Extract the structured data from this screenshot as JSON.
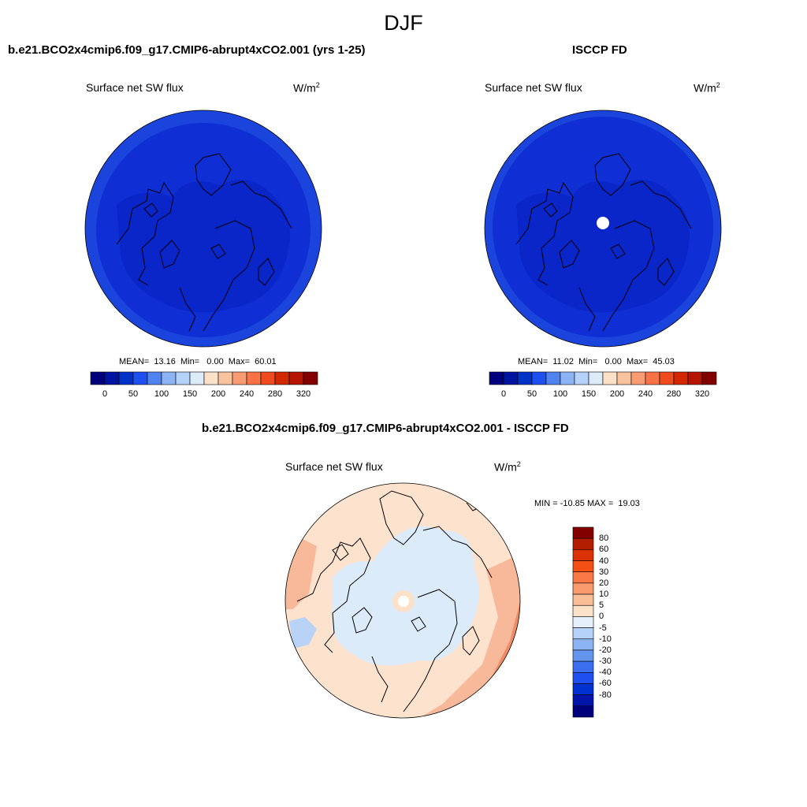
{
  "season": "DJF",
  "panels": [
    {
      "title": "b.e21.BCO2x4cmip6.f09_g17.CMIP6-abrupt4xCO2.001 (yrs 1-25)",
      "variable": "Surface net SW flux",
      "units_base": "W/m",
      "units_exp": "2",
      "stats": "MEAN=  13.16  Min=   0.00  Max=  60.01"
    },
    {
      "title": "ISCCP FD",
      "variable": "Surface net SW flux",
      "units_base": "W/m",
      "units_exp": "2",
      "stats": "MEAN=  11.02  Min=   0.00  Max=  45.03"
    },
    {
      "title": "b.e21.BCO2x4cmip6.f09_g17.CMIP6-abrupt4xCO2.001 - ISCCP FD",
      "variable": "Surface net SW flux",
      "units_base": "W/m",
      "units_exp": "2",
      "stats": "MIN = -10.85 MAX =  19.03"
    }
  ],
  "colorbar_abs": {
    "colors": [
      "#00007d",
      "#0014a0",
      "#0032c8",
      "#1e50f0",
      "#5082f0",
      "#8cb4f5",
      "#b4d2fa",
      "#dcebfa",
      "#fae1c8",
      "#fac3a0",
      "#fa9b73",
      "#fa7346",
      "#f04b1e",
      "#d22800",
      "#b41400",
      "#820000"
    ],
    "labels": [
      "0",
      "50",
      "100",
      "150",
      "200",
      "240",
      "280",
      "320"
    ]
  },
  "colorbar_diff": {
    "colors": [
      "#820000",
      "#b41e00",
      "#dc3200",
      "#f55014",
      "#fa7846",
      "#fa9b6e",
      "#fabe96",
      "#fae1c8",
      "#e6f0fa",
      "#b4d2fa",
      "#8cb4f5",
      "#6496f0",
      "#3c6ef0",
      "#1e50f0",
      "#0032d2",
      "#0014aa",
      "#00007d"
    ],
    "labels": [
      "80",
      "60",
      "40",
      "30",
      "20",
      "10",
      "5",
      "0",
      "-5",
      "-10",
      "-20",
      "-30",
      "-40",
      "-60",
      "-80"
    ]
  },
  "map_colors": {
    "model_ocean": "#0f2fd4",
    "model_land": "#0a26c8",
    "model_rim": "#1b44dc",
    "obs_ocean": "#0f2fd4",
    "obs_land": "#0a26c8",
    "obs_rim": "#1b44dc",
    "diff_base": "#fde3cd",
    "diff_warm": "#f8b89a",
    "diff_hot": "#f08c64",
    "diff_cool": "#dcebfa",
    "diff_cooler": "#b9d3f6"
  }
}
